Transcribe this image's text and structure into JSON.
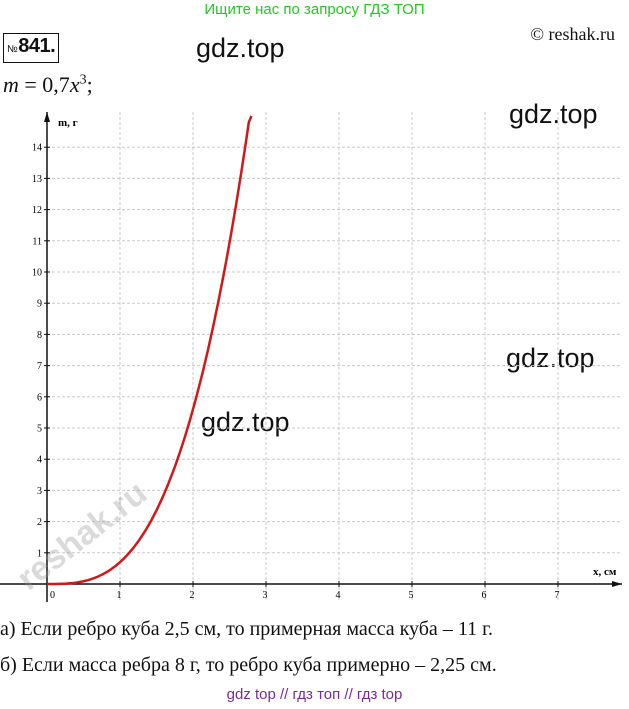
{
  "banner": "Ищите нас по запросу ГДЗ ТОП",
  "problem": {
    "prefix": "№",
    "number": "841."
  },
  "copyright": "© reshak.ru",
  "watermarks": [
    "gdz.top",
    "gdz.top",
    "gdz.top",
    "gdz.top"
  ],
  "formula": {
    "lhs": "m",
    "eq": " = 0,7",
    "var": "x",
    "exp": "3",
    "end": ";"
  },
  "chart_data": {
    "type": "line",
    "xlabel": "x, см",
    "ylabel": "m, г",
    "xlim": [
      0,
      7.5
    ],
    "ylim": [
      0,
      14.5
    ],
    "x_ticks": [
      "1",
      "2",
      "3",
      "4",
      "5",
      "6",
      "7"
    ],
    "y_ticks": [
      "1",
      "2",
      "3",
      "4",
      "5",
      "6",
      "7",
      "8",
      "9",
      "10",
      "11",
      "12",
      "13",
      "14"
    ],
    "origin_label": "0",
    "grid": true,
    "series": [
      {
        "formula": "m = 0.7x^3",
        "x": [
          0,
          0.25,
          0.5,
          0.75,
          1,
          1.25,
          1.5,
          1.75,
          2,
          2.25,
          2.5,
          2.75,
          2.8
        ],
        "y": [
          0,
          0.011,
          0.088,
          0.295,
          0.7,
          1.367,
          2.363,
          3.752,
          5.6,
          7.973,
          10.938,
          14.558,
          15.366
        ]
      }
    ]
  },
  "answers": {
    "a": "а) Если ребро куба 2,5 см, то примерная масса куба – 11 г.",
    "b": "б) Если масса ребра 8 г, то ребро куба примерно –  2,25 см."
  },
  "footer": "gdz top  //  гдз топ  //  гдз top",
  "side_watermark": "reshak.ru",
  "colors": {
    "banner": "#22c822",
    "curve": "#d01818",
    "footer": "#7a2a9a",
    "grid": "#c8c8c8"
  }
}
